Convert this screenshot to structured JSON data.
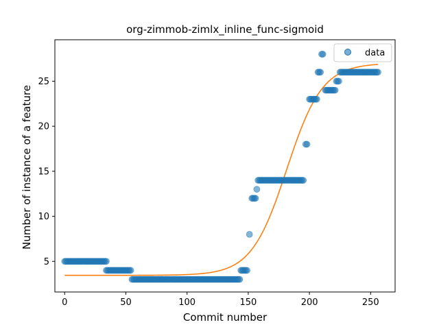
{
  "chart_data": {
    "type": "scatter",
    "title": "org-zimmob-zimlx_inline_func-sigmoid",
    "xlabel": "Commit number",
    "ylabel": "Number of instance of a feature",
    "xlim": [
      -8,
      270
    ],
    "ylim": [
      1.6,
      29.6
    ],
    "xticks": [
      0,
      50,
      100,
      150,
      200,
      250
    ],
    "yticks": [
      5,
      10,
      15,
      20,
      25
    ],
    "legend": {
      "position": "top-right",
      "entries": [
        "data"
      ]
    },
    "colors": {
      "data": "#1f77b4",
      "fit": "#ff7f0e"
    },
    "series": [
      {
        "name": "data",
        "kind": "scatter",
        "segments": [
          {
            "x_from": 0,
            "x_to": 34,
            "y": 5
          },
          {
            "x_from": 34,
            "x_to": 54,
            "y": 4
          },
          {
            "x_from": 55,
            "x_to": 143,
            "y": 3
          },
          {
            "x_from": 144,
            "x_to": 149,
            "y": 4
          },
          {
            "x_from": 151,
            "x_to": 151,
            "y": 8
          },
          {
            "x_from": 153,
            "x_to": 156,
            "y": 12
          },
          {
            "x_from": 157,
            "x_to": 157,
            "y": 13
          },
          {
            "x_from": 158,
            "x_to": 195,
            "y": 14
          },
          {
            "x_from": 197,
            "x_to": 198,
            "y": 18
          },
          {
            "x_from": 200,
            "x_to": 206,
            "y": 23
          },
          {
            "x_from": 207,
            "x_to": 209,
            "y": 26
          },
          {
            "x_from": 210,
            "x_to": 211,
            "y": 28
          },
          {
            "x_from": 213,
            "x_to": 221,
            "y": 24
          },
          {
            "x_from": 222,
            "x_to": 224,
            "y": 25
          },
          {
            "x_from": 225,
            "x_to": 256,
            "y": 26
          }
        ]
      },
      {
        "name": "",
        "kind": "line",
        "model": "sigmoid",
        "params": {
          "lower": 3.45,
          "upper": 27.0,
          "midpoint": 181.5,
          "rate": 0.069
        },
        "x_range": [
          0,
          256
        ]
      }
    ]
  }
}
